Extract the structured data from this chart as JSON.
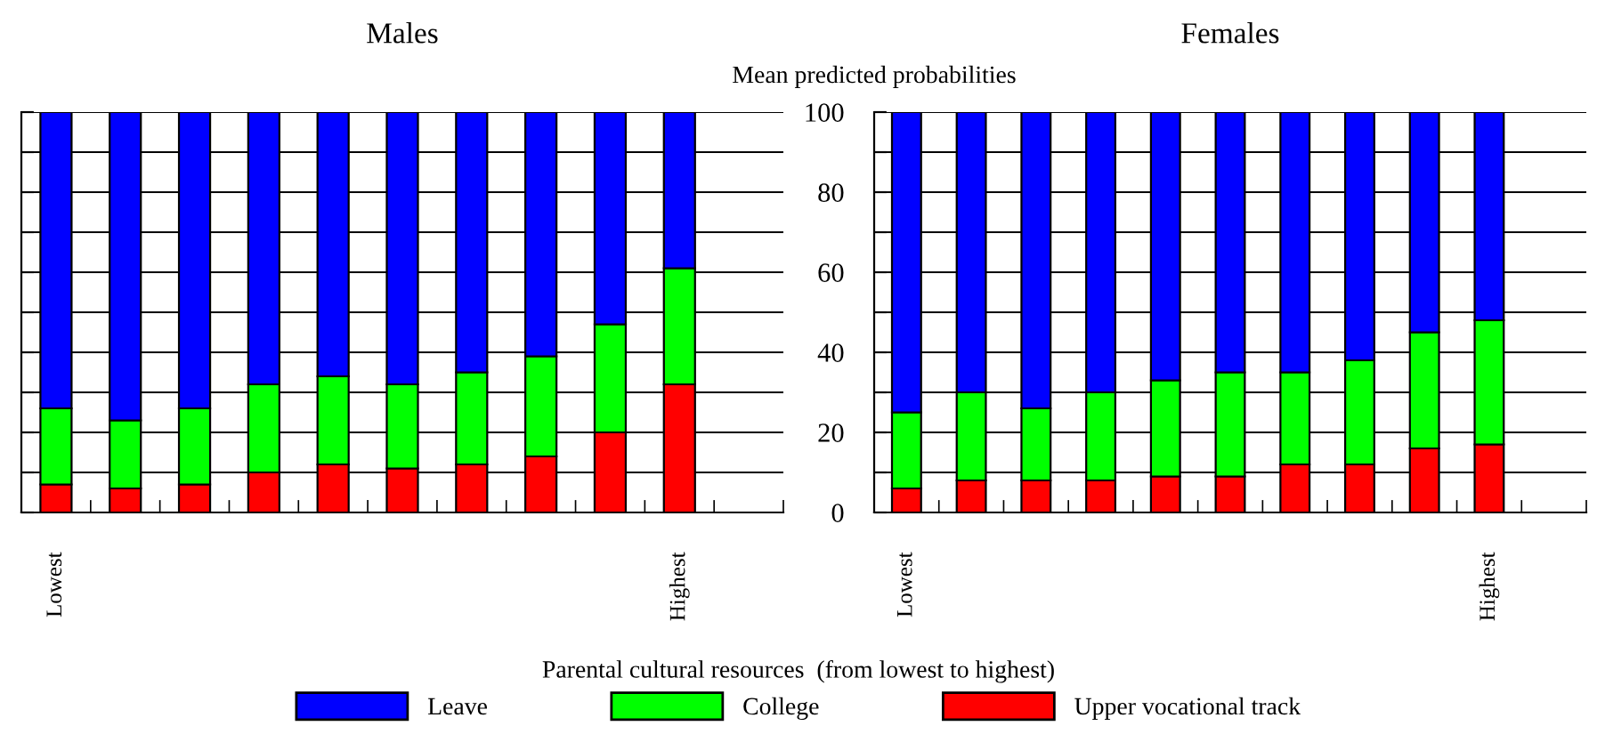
{
  "chart_data": [
    {
      "type": "bar",
      "title": "Males",
      "stacked": true,
      "grid": "y",
      "legend": "bottom",
      "tick_labels": "x",
      "categories": [
        "Lowest",
        null,
        null,
        null,
        null,
        null,
        null,
        null,
        null,
        "Highest"
      ],
      "ylim": [
        0,
        100
      ],
      "yticks": [
        0,
        {
          "value": 10,
          "label": null
        },
        {
          "value": 20,
          "label": null
        },
        {
          "value": 30,
          "label": null
        },
        {
          "value": 40,
          "label": null
        },
        {
          "value": 50,
          "label": null
        },
        {
          "value": 60,
          "label": null
        },
        {
          "value": 70,
          "label": null
        },
        {
          "value": 80,
          "label": null
        },
        {
          "value": 90,
          "label": null
        },
        {
          "value": 100,
          "label": null
        }
      ],
      "annotations": [
        "Parental cultural resources  (from lowest to highest)"
      ],
      "series": [
        {
          "name": "Upper vocational track",
          "color": "#ff0000",
          "values": [
            7,
            6,
            7,
            10,
            12,
            11,
            12,
            14,
            20,
            32
          ]
        },
        {
          "name": "College",
          "color": "#00ff00",
          "values": [
            19,
            17,
            19,
            22,
            22,
            21,
            23,
            25,
            27,
            29
          ]
        },
        {
          "name": "Leave",
          "color": "#0000ff",
          "values": [
            74,
            77,
            74,
            68,
            66,
            68,
            65,
            61,
            53,
            39
          ]
        }
      ]
    },
    {
      "type": "bar",
      "title": "Females",
      "ylabel": "Mean predicted probabilities",
      "stacked": true,
      "grid": "y",
      "categories": [
        "Lowest",
        null,
        null,
        null,
        null,
        null,
        null,
        null,
        null,
        "Highest"
      ],
      "ylim": [
        0,
        100
      ],
      "yticks": [
        0,
        {
          "value": 10,
          "label": null
        },
        20,
        {
          "value": 30,
          "label": null
        },
        40,
        {
          "value": 50,
          "label": null
        },
        60,
        {
          "value": 70,
          "label": null
        },
        80,
        {
          "value": 90,
          "label": null
        },
        100
      ],
      "series": [
        {
          "color": "#ff0000",
          "values": [
            6,
            8,
            8,
            8,
            9,
            9,
            12,
            12,
            16,
            17
          ]
        },
        {
          "color": "#00ff00",
          "values": [
            19,
            22,
            18,
            22,
            24,
            26,
            23,
            26,
            29,
            31
          ]
        },
        {
          "color": "#0000ff",
          "values": [
            75,
            70,
            74,
            70,
            67,
            65,
            65,
            62,
            55,
            52
          ]
        }
      ]
    }
  ]
}
